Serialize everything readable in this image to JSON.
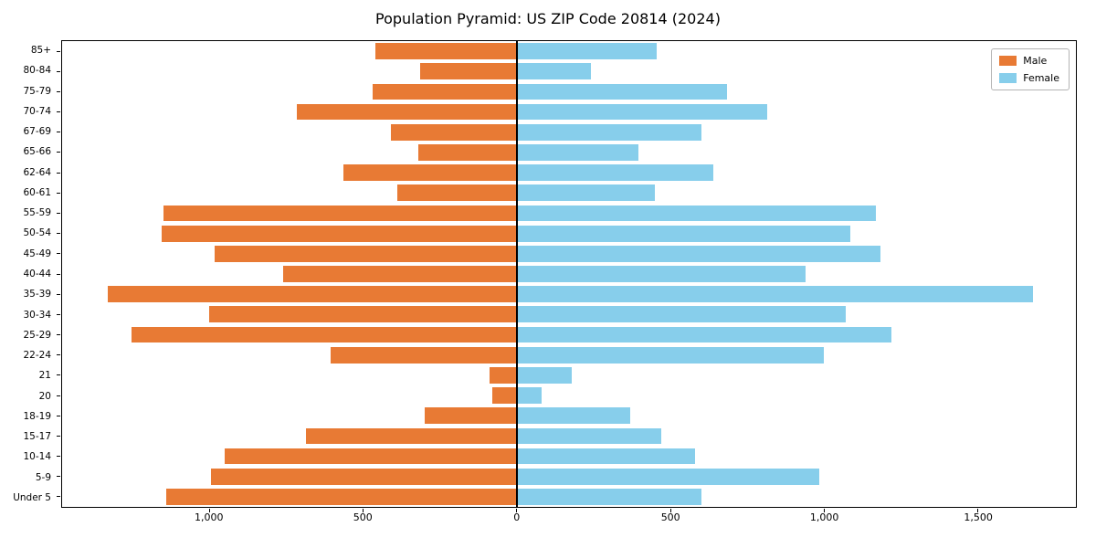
{
  "chart_data": {
    "type": "bar",
    "subtype": "population-pyramid",
    "title": "Population Pyramid: US ZIP Code 20814 (2024)",
    "grid": false,
    "categories_top_to_bottom": [
      "85+",
      "80-84",
      "75-79",
      "70-74",
      "67-69",
      "65-66",
      "62-64",
      "60-61",
      "55-59",
      "50-54",
      "45-49",
      "40-44",
      "35-39",
      "30-34",
      "25-29",
      "22-24",
      "21",
      "20",
      "18-19",
      "15-17",
      "10-14",
      "5-9",
      "Under 5"
    ],
    "series": [
      {
        "name": "Male",
        "direction": "left",
        "color": "#E87A34",
        "values": [
          460,
          315,
          470,
          715,
          410,
          320,
          565,
          390,
          1150,
          1155,
          985,
          760,
          1330,
          1000,
          1255,
          605,
          90,
          80,
          300,
          685,
          950,
          995,
          1140
        ]
      },
      {
        "name": "Female",
        "direction": "right",
        "color": "#87CEEB",
        "values": [
          455,
          240,
          685,
          815,
          600,
          395,
          640,
          450,
          1170,
          1085,
          1185,
          940,
          1680,
          1070,
          1220,
          1000,
          180,
          80,
          370,
          470,
          580,
          985,
          600
        ]
      }
    ],
    "x_axis": {
      "min": -1480,
      "max": 1820,
      "ticks": [
        -1000,
        -500,
        0,
        500,
        1000,
        1500
      ],
      "tick_labels": [
        "1,000",
        "500",
        "0",
        "500",
        "1,000",
        "1,500"
      ]
    },
    "legend": {
      "position": "upper right"
    },
    "bar_fill_fraction": 0.8
  }
}
